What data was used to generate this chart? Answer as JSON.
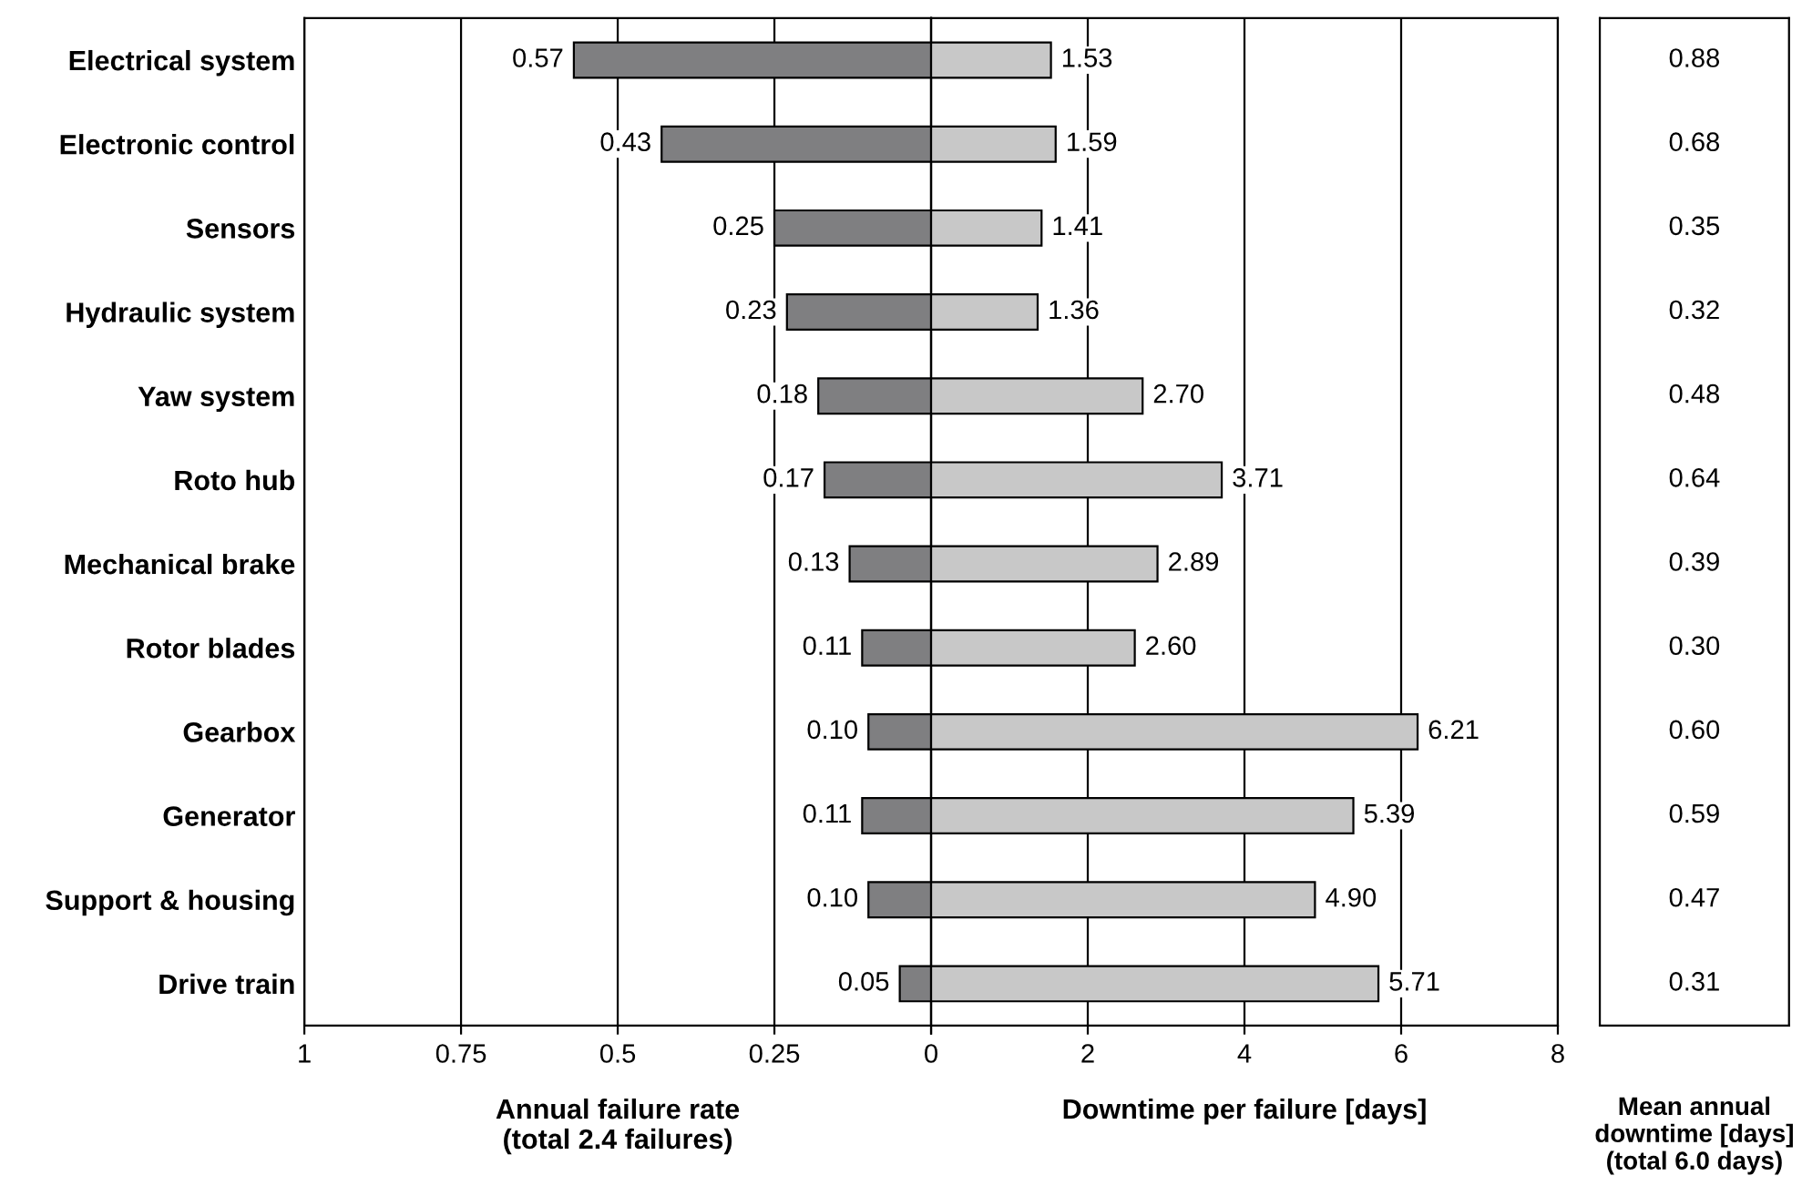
{
  "chart_data": [
    {
      "type": "bar",
      "orientation": "horizontal",
      "xlabel": "Annual failure rate\n(total 2.4 failures)",
      "categories": [
        "Electrical system",
        "Electronic control",
        "Sensors",
        "Hydraulic system",
        "Yaw system",
        "Roto hub",
        "Mechanical brake",
        "Rotor blades",
        "Gearbox",
        "Generator",
        "Support & housing",
        "Drive train"
      ],
      "values": [
        0.57,
        0.43,
        0.25,
        0.23,
        0.18,
        0.17,
        0.13,
        0.11,
        0.1,
        0.11,
        0.1,
        0.05
      ],
      "value_labels": [
        "0.57",
        "0.43",
        "0.25",
        "0.23",
        "0.18",
        "0.17",
        "0.13",
        "0.11",
        "0.10",
        "0.11",
        "0.10",
        "0.05"
      ],
      "color": "#7f7f81",
      "xlim": [
        1,
        0
      ],
      "xticks": [
        1,
        0.75,
        0.5,
        0.25,
        {
          "value": 0,
          "label": null
        }
      ],
      "grid": "x"
    },
    {
      "type": "bar",
      "orientation": "horizontal",
      "xlabel": "Downtime per failure [days]",
      "categories": [
        null,
        null,
        null,
        null,
        null,
        null,
        null,
        null,
        null,
        null,
        null,
        null
      ],
      "values": [
        1.53,
        1.59,
        1.41,
        1.36,
        2.7,
        3.71,
        2.89,
        2.6,
        6.21,
        5.39,
        4.9,
        5.71
      ],
      "value_labels": [
        "1.53",
        "1.59",
        "1.41",
        "1.36",
        "2.70",
        "3.71",
        "2.89",
        "2.60",
        "6.21",
        "5.39",
        "4.90",
        "5.71"
      ],
      "color": "#c8c8c8",
      "xlim": [
        0,
        8
      ],
      "xticks": [
        0,
        2,
        4,
        6,
        8
      ],
      "grid": "x",
      "tick_labels": "x"
    },
    {
      "type": "other",
      "xlabel": "Mean annual\ndowntime [days]\n(total 6.0 days)",
      "value_labels": [
        "0.88",
        "0.68",
        "0.35",
        "0.32",
        "0.48",
        "0.64",
        "0.39",
        "0.30",
        "0.60",
        "0.59",
        "0.47",
        "0.31"
      ]
    }
  ]
}
